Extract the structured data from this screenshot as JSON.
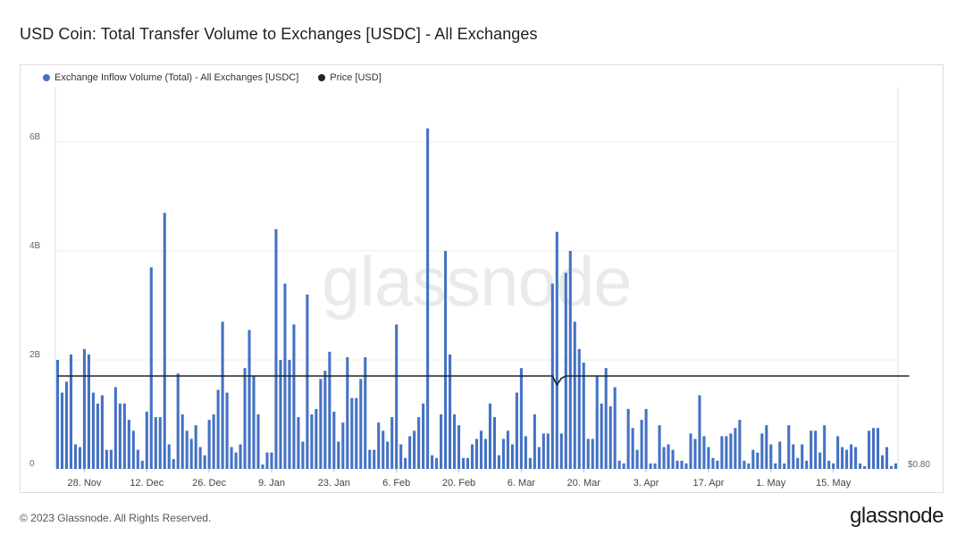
{
  "title": "USD Coin: Total Transfer Volume to Exchanges [USDC] - All Exchanges",
  "legend": [
    {
      "label": "Exchange Inflow Volume (Total) - All Exchanges [USDC]",
      "color": "#4472c4"
    },
    {
      "label": "Price [USD]",
      "color": "#222222"
    }
  ],
  "watermark": "glassnode",
  "footer": "© 2023 Glassnode. All Rights Reserved.",
  "brand": "glassnode",
  "chart_data": {
    "type": "bar",
    "title": "USD Coin: Total Transfer Volume to Exchanges [USDC] - All Exchanges",
    "xlabel": "",
    "ylabel": "",
    "ylim": [
      0,
      7000000000
    ],
    "yticks": [
      {
        "value": 0,
        "label": "0"
      },
      {
        "value": 2000000000,
        "label": "2B"
      },
      {
        "value": 4000000000,
        "label": "4B"
      },
      {
        "value": 6000000000,
        "label": "6B"
      }
    ],
    "y2_label": "$0.80",
    "xticks": [
      {
        "index": 6,
        "label": "28. Nov"
      },
      {
        "index": 20,
        "label": "12. Dec"
      },
      {
        "index": 34,
        "label": "26. Dec"
      },
      {
        "index": 48,
        "label": "9. Jan"
      },
      {
        "index": 62,
        "label": "23. Jan"
      },
      {
        "index": 76,
        "label": "6. Feb"
      },
      {
        "index": 90,
        "label": "20. Feb"
      },
      {
        "index": 104,
        "label": "6. Mar"
      },
      {
        "index": 118,
        "label": "20. Mar"
      },
      {
        "index": 132,
        "label": "3. Apr"
      },
      {
        "index": 146,
        "label": "17. Apr"
      },
      {
        "index": 160,
        "label": "1. May"
      },
      {
        "index": 174,
        "label": "15. May"
      }
    ],
    "grid": true,
    "legend_position": "top-left",
    "series": [
      {
        "name": "Exchange Inflow Volume (Total) - All Exchanges [USDC]",
        "color": "#4472c4",
        "values": [
          2.0,
          1.4,
          1.6,
          2.1,
          0.45,
          0.4,
          2.2,
          2.1,
          1.4,
          1.2,
          1.35,
          0.35,
          0.35,
          1.5,
          1.2,
          1.2,
          0.9,
          0.7,
          0.35,
          0.15,
          1.05,
          3.7,
          0.95,
          0.95,
          4.7,
          0.45,
          0.18,
          1.75,
          1.0,
          0.7,
          0.55,
          0.8,
          0.4,
          0.25,
          0.9,
          1.0,
          1.45,
          2.7,
          1.4,
          0.4,
          0.3,
          0.45,
          1.85,
          2.55,
          1.7,
          1.0,
          0.08,
          0.3,
          0.3,
          4.4,
          2.0,
          3.4,
          2.0,
          2.65,
          0.95,
          0.5,
          3.2,
          1.0,
          1.1,
          1.65,
          1.8,
          2.15,
          1.05,
          0.5,
          0.85,
          2.05,
          1.3,
          1.3,
          1.65,
          2.05,
          0.35,
          0.35,
          0.85,
          0.7,
          0.5,
          0.95,
          2.65,
          0.45,
          0.2,
          0.6,
          0.7,
          0.95,
          1.2,
          6.25,
          0.25,
          0.2,
          1.0,
          4.0,
          2.1,
          1.0,
          0.8,
          0.2,
          0.2,
          0.45,
          0.55,
          0.7,
          0.55,
          1.2,
          0.95,
          0.25,
          0.55,
          0.7,
          0.45,
          1.4,
          1.85,
          0.6,
          0.2,
          1.0,
          0.4,
          0.65,
          0.65,
          3.4,
          4.35,
          0.65,
          3.6,
          4.0,
          2.7,
          2.2,
          1.95,
          0.55,
          0.55,
          1.7,
          1.2,
          1.85,
          1.15,
          1.5,
          0.15,
          0.1,
          1.1,
          0.75,
          0.35,
          0.9,
          1.1,
          0.1,
          0.1,
          0.8,
          0.4,
          0.45,
          0.35,
          0.15,
          0.15,
          0.1,
          0.65,
          0.55,
          1.35,
          0.6,
          0.4,
          0.2,
          0.15,
          0.6,
          0.6,
          0.65,
          0.75,
          0.9,
          0.15,
          0.1,
          0.35,
          0.3,
          0.65,
          0.8,
          0.45,
          0.1,
          0.5,
          0.1,
          0.8,
          0.45,
          0.2,
          0.45,
          0.15,
          0.7,
          0.7,
          0.3,
          0.8,
          0.15,
          0.1,
          0.6,
          0.4,
          0.35,
          0.45,
          0.4,
          0.1,
          0.05,
          0.7,
          0.75,
          0.75,
          0.25,
          0.4,
          0.05,
          0.1
        ]
      },
      {
        "name": "Price [USD]",
        "color": "#222222",
        "type": "line",
        "values_note_axis": "right",
        "values": [
          1.0,
          1.0,
          1.0,
          1.0,
          1.0,
          1.0,
          1.0,
          1.0,
          1.0,
          1.0,
          1.0,
          1.0,
          1.0,
          1.0,
          1.0,
          1.0,
          1.0,
          1.0,
          1.0,
          1.0,
          1.0,
          1.0,
          1.0,
          1.0,
          1.0,
          1.0,
          1.0,
          1.0,
          1.0,
          1.0,
          1.0,
          1.0,
          1.0,
          1.0,
          1.0,
          1.0,
          1.0,
          1.0,
          1.0,
          1.0,
          1.0,
          1.0,
          1.0,
          1.0,
          1.0,
          1.0,
          1.0,
          1.0,
          1.0,
          1.0,
          1.0,
          1.0,
          1.0,
          1.0,
          1.0,
          1.0,
          1.0,
          1.0,
          1.0,
          1.0,
          1.0,
          1.0,
          1.0,
          1.0,
          1.0,
          1.0,
          1.0,
          1.0,
          1.0,
          1.0,
          1.0,
          1.0,
          1.0,
          1.0,
          1.0,
          1.0,
          1.0,
          1.0,
          1.0,
          1.0,
          1.0,
          1.0,
          1.0,
          1.0,
          1.0,
          1.0,
          1.0,
          1.0,
          1.0,
          1.0,
          1.0,
          1.0,
          1.0,
          1.0,
          1.0,
          1.0,
          1.0,
          1.0,
          1.0,
          1.0,
          1.0,
          1.0,
          1.0,
          1.0,
          1.0,
          1.0,
          1.0,
          1.0,
          1.0,
          1.0,
          1.0,
          1.0,
          0.96,
          0.99,
          1.0,
          1.0,
          1.0,
          1.0,
          1.0,
          1.0,
          1.0,
          1.0,
          1.0,
          1.0,
          1.0,
          1.0,
          1.0,
          1.0,
          1.0,
          1.0,
          1.0,
          1.0,
          1.0,
          1.0,
          1.0,
          1.0,
          1.0,
          1.0,
          1.0,
          1.0,
          1.0,
          1.0,
          1.0,
          1.0,
          1.0,
          1.0,
          1.0,
          1.0,
          1.0,
          1.0,
          1.0,
          1.0,
          1.0,
          1.0,
          1.0,
          1.0,
          1.0,
          1.0,
          1.0,
          1.0,
          1.0,
          1.0,
          1.0,
          1.0,
          1.0,
          1.0,
          1.0,
          1.0,
          1.0,
          1.0,
          1.0,
          1.0,
          1.0,
          1.0,
          1.0,
          1.0,
          1.0,
          1.0,
          1.0,
          1.0,
          1.0,
          1.0,
          1.0,
          1.0,
          1.0,
          1.0,
          1.0,
          1.0,
          1.0,
          1.0,
          1.0,
          1.0
        ]
      }
    ]
  }
}
